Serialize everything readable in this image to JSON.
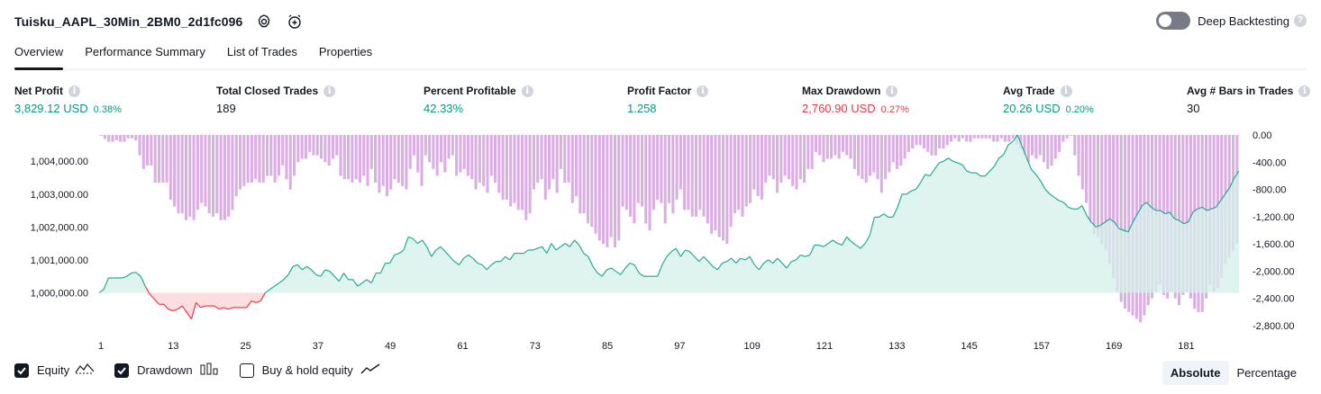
{
  "strategy": {
    "title": "Tuisku_AAPL_30Min_2BM0_2d1fc096"
  },
  "header_icons": [
    "settings-icon",
    "alarm-add-icon"
  ],
  "deep_backtesting": {
    "label": "Deep Backtesting",
    "enabled": false
  },
  "tabs": [
    {
      "label": "Overview",
      "active": true
    },
    {
      "label": "Performance Summary",
      "active": false
    },
    {
      "label": "List of Trades",
      "active": false
    },
    {
      "label": "Properties",
      "active": false
    }
  ],
  "metrics": {
    "net_profit": {
      "label": "Net Profit",
      "value": "3,829.12 USD",
      "pct": "0.38%"
    },
    "total_closed_trades": {
      "label": "Total Closed Trades",
      "value": "189"
    },
    "percent_profitable": {
      "label": "Percent Profitable",
      "value": "42.33%"
    },
    "profit_factor": {
      "label": "Profit Factor",
      "value": "1.258"
    },
    "max_drawdown": {
      "label": "Max Drawdown",
      "value": "2,760.90 USD",
      "pct": "0.27%"
    },
    "avg_trade": {
      "label": "Avg Trade",
      "value": "20.26 USD",
      "pct": "0.20%"
    },
    "avg_bars": {
      "label": "Avg # Bars in Trades",
      "value": "30"
    }
  },
  "colors": {
    "positive": "#089981",
    "negative": "#f23645",
    "equity_line": "#22ab94",
    "equity_fill": "#d6f0ea",
    "equity_loss_fill": "#fcdadd",
    "drawdown": "#ce93d8",
    "drawdown_overlap": "#9fa7d9",
    "text": "#131722",
    "muted": "#787b86"
  },
  "chart_data": {
    "type": "line",
    "x_ticks": [
      "1",
      "13",
      "25",
      "37",
      "49",
      "61",
      "73",
      "85",
      "97",
      "109",
      "121",
      "133",
      "145",
      "157",
      "169",
      "181"
    ],
    "y_left_ticks": [
      "1,004,000.00",
      "1,003,000.00",
      "1,002,000.00",
      "1,001,000.00",
      "1,000,000.00"
    ],
    "y_right_ticks": [
      "0.00",
      "-400.00",
      "-800.00",
      "-1,200.00",
      "-1,600.00",
      "-2,000.00",
      "-2,400.00",
      "-2,800.00"
    ],
    "x_range": [
      1,
      189
    ],
    "y_left_range": [
      999000,
      1004800
    ],
    "y_right_range": [
      -2800,
      0
    ],
    "series": [
      {
        "name": "Equity",
        "values": [
          1000000,
          1000100,
          1000450,
          1000450,
          1000450,
          1000450,
          1000500,
          1000600,
          1000620,
          1000500,
          1000200,
          999950,
          999800,
          999650,
          999650,
          999500,
          999450,
          999500,
          999600,
          999400,
          999200,
          999700,
          999550,
          999600,
          999600,
          999600,
          999500,
          999550,
          999500,
          999550,
          999550,
          999550,
          999550,
          999750,
          999700,
          999750,
          1000000,
          1000100,
          1000200,
          1000300,
          1000400,
          1000550,
          1000800,
          1000850,
          1000700,
          1000800,
          1000700,
          1000550,
          1000500,
          1000700,
          1000650,
          1000500,
          1000350,
          1000600,
          1000400,
          1000400,
          1000200,
          1000300,
          1000400,
          1000300,
          1000600,
          1000600,
          1000900,
          1000900,
          1001150,
          1001200,
          1001300,
          1001700,
          1001650,
          1001500,
          1001600,
          1001400,
          1001100,
          1001300,
          1001400,
          1001250,
          1001100,
          1000950,
          1000850,
          1001050,
          1001150,
          1001050,
          1000900,
          1000850,
          1000700,
          1000850,
          1000950,
          1000950,
          1001100,
          1001000,
          1001200,
          1001200,
          1001200,
          1001300,
          1001300,
          1001350,
          1001400,
          1001200,
          1001500,
          1001300,
          1001400,
          1001500,
          1001400,
          1001600,
          1001450,
          1001200,
          1001100,
          1000800,
          1000600,
          1000500,
          1000700,
          1000750,
          1000650,
          1000550,
          1000750,
          1000900,
          1000850,
          1000600,
          1000500,
          1000500,
          1000500,
          1000500,
          1000850,
          1001100,
          1001250,
          1001350,
          1001100,
          1001300,
          1001250,
          1001100,
          1000950,
          1001100,
          1000950,
          1000800,
          1000700,
          1000900,
          1000950,
          1001050,
          1000900,
          1001050,
          1001000,
          1001100,
          1000850,
          1000700,
          1000900,
          1001000,
          1000900,
          1001050,
          1000900,
          1000750,
          1000950,
          1001000,
          1001150,
          1001100,
          1001150,
          1001450,
          1001450,
          1001400,
          1001500,
          1001600,
          1001500,
          1001450,
          1001700,
          1001550,
          1001450,
          1001350,
          1001500,
          1001750,
          1002300,
          1002300,
          1002400,
          1002300,
          1002300,
          1002600,
          1003000,
          1003000,
          1003100,
          1003150,
          1003350,
          1003600,
          1003550,
          1003750,
          1003950,
          1004000,
          1004100,
          1004000,
          1003950,
          1003900,
          1003700,
          1003650,
          1003650,
          1003550,
          1003550,
          1003700,
          1003850,
          1004100,
          1004200,
          1004500,
          1004600,
          1004800,
          1004450,
          1004100,
          1003750,
          1003600,
          1003400,
          1003150,
          1003000,
          1002900,
          1002800,
          1002750,
          1002600,
          1002550,
          1002550,
          1002650,
          1002350,
          1002150,
          1002000,
          1002050,
          1002150,
          1002250,
          1002150,
          1001950,
          1001900,
          1001850,
          1002150,
          1002400,
          1002650,
          1002750,
          1002600,
          1002500,
          1002500,
          1002400,
          1002450,
          1002250,
          1002200,
          1002100,
          1002150,
          1002450,
          1002550,
          1002600,
          1002500,
          1002550,
          1002600,
          1002800,
          1003000,
          1003200,
          1003500,
          1003700
        ]
      },
      {
        "name": "Drawdown",
        "values": [
          -10,
          -60,
          -100,
          -100,
          -80,
          -100,
          -100,
          -50,
          -50,
          -80,
          -300,
          -500,
          -450,
          -450,
          -700,
          -700,
          -700,
          -700,
          -950,
          -1050,
          -1150,
          -1150,
          -1250,
          -1200,
          -1250,
          -1100,
          -1000,
          -1050,
          -1150,
          -1200,
          -1150,
          -1250,
          -1250,
          -1200,
          -1100,
          -900,
          -800,
          -750,
          -700,
          -700,
          -650,
          -700,
          -700,
          -600,
          -600,
          -700,
          -600,
          -450,
          -650,
          -800,
          -600,
          -400,
          -350,
          -350,
          -250,
          -300,
          -300,
          -350,
          -400,
          -450,
          -350,
          -300,
          -600,
          -650,
          -650,
          -700,
          -650,
          -700,
          -600,
          -750,
          -500,
          -700,
          -850,
          -750,
          -900,
          -800,
          -650,
          -700,
          -750,
          -800,
          -500,
          -300,
          -550,
          -750,
          -300,
          -400,
          -500,
          -600,
          -400,
          -550,
          -350,
          -300,
          -600,
          -550,
          -500,
          -600,
          -650,
          -800,
          -700,
          -750,
          -850,
          -600,
          -700,
          -850,
          -950,
          -950,
          -1050,
          -1000,
          -1100,
          -1100,
          -1250,
          -1150,
          -800,
          -700,
          -650,
          -950,
          -800,
          -650,
          -850,
          -500,
          -700,
          -700,
          -1000,
          -900,
          -1150,
          -1150,
          -1300,
          -1350,
          -1450,
          -1550,
          -1600,
          -1650,
          -1500,
          -1650,
          -1550,
          -1050,
          -1100,
          -1200,
          -1300,
          -1000,
          -1050,
          -1300,
          -1400,
          -1100,
          -950,
          -1000,
          -1300,
          -1000,
          -1150,
          -950,
          -800,
          -1100,
          -1100,
          -1200,
          -1200,
          -1100,
          -1200,
          -1300,
          -1450,
          -1400,
          -1500,
          -1550,
          -1600,
          -1350,
          -1150,
          -1100,
          -1200,
          -1050,
          -1000,
          -800,
          -900,
          -950,
          -700,
          -600,
          -650,
          -850,
          -700,
          -600,
          -650,
          -750,
          -800,
          -650,
          -700,
          -500,
          -500,
          -250,
          -300,
          -400,
          -350,
          -350,
          -300,
          -350,
          -250,
          -300,
          -350,
          -500,
          -600,
          -650,
          -700,
          -600,
          -550,
          -650,
          -850,
          -650,
          -550,
          -400,
          -500,
          -450,
          -350,
          -250,
          -200,
          -150,
          -150,
          -200,
          -250,
          -300,
          -300,
          -200,
          -200,
          -150,
          -100,
          -50,
          -100,
          -50,
          -100,
          -100,
          -50,
          -50,
          -50,
          -50,
          -50,
          -100,
          -100,
          -50,
          -100,
          -100,
          -50,
          -150,
          -200,
          -300,
          -400,
          -300,
          -350,
          -300,
          -400,
          -500,
          -450,
          -350,
          -250,
          -100,
          -50,
          0,
          -300,
          -600,
          -800,
          -1000,
          -1300,
          -1450,
          -1500,
          -1600,
          -1700,
          -1900,
          -2100,
          -2300,
          -2450,
          -2550,
          -2600,
          -2650,
          -2700,
          -2750,
          -2650,
          -2500,
          -2400,
          -2300,
          -2200,
          -2350,
          -2400,
          -2300,
          -2400,
          -2500,
          -2350,
          -2300,
          -2400,
          -2550,
          -2600,
          -2600,
          -2400,
          -2200,
          -2300,
          -2250,
          -2100,
          -1900,
          -1800,
          -1700,
          -1600
        ]
      }
    ]
  },
  "legend": [
    {
      "label": "Equity",
      "checked": true,
      "icon": "equity-line-icon"
    },
    {
      "label": "Drawdown",
      "checked": true,
      "icon": "drawdown-bars-icon"
    },
    {
      "label": "Buy & hold equity",
      "checked": false,
      "icon": "buy-hold-line-icon"
    }
  ],
  "view_mode": {
    "options": [
      "Absolute",
      "Percentage"
    ],
    "selected": "Absolute"
  }
}
